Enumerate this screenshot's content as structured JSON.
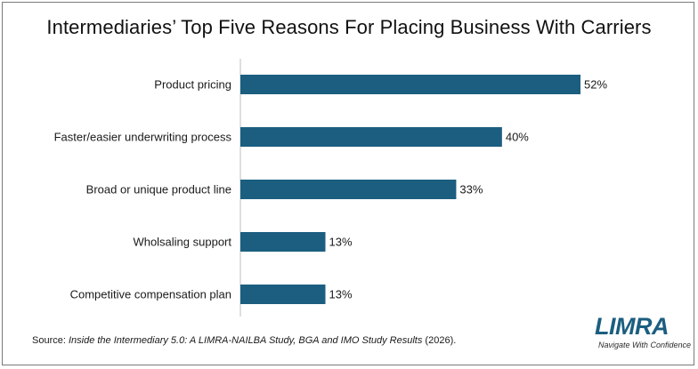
{
  "chart_data": {
    "type": "bar",
    "orientation": "horizontal",
    "title": "Intermediaries’ Top Five Reasons For Placing Business With Carriers",
    "categories": [
      "Product pricing",
      "Faster/easier underwriting process",
      "Broad or unique product line",
      "Wholsaling support",
      "Competitive compensation plan"
    ],
    "values": [
      52,
      40,
      33,
      13,
      13
    ],
    "value_labels": [
      "52%",
      "40%",
      "33%",
      "13%",
      "13%"
    ],
    "xlim": [
      0,
      52
    ],
    "grid": false,
    "bar_color": "#1b5e80"
  },
  "source": {
    "prefix": "Source: ",
    "title": "Inside the Intermediary 5.0: A LIMRA-NAILBA Study, BGA and IMO Study Results",
    "suffix": " (2026)."
  },
  "logo": {
    "word": "LIMRA",
    "tagline": "Navigate With Confidence",
    "color": "#1b5e80"
  }
}
